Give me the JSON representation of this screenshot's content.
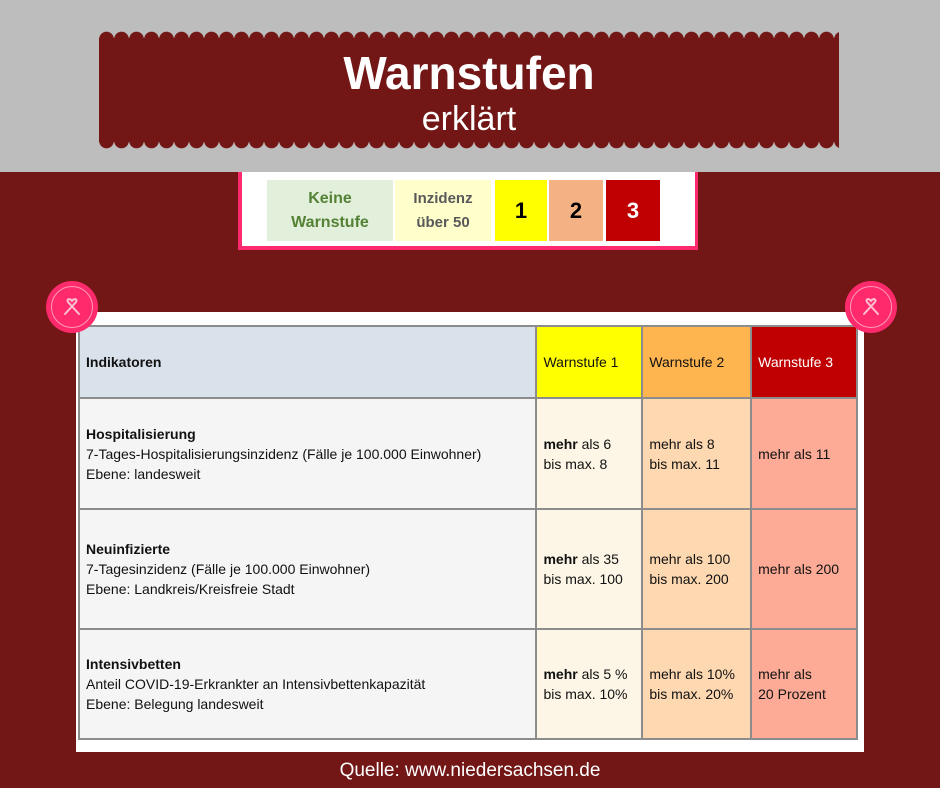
{
  "header": {
    "title": "Warnstufen",
    "subtitle": "erklärt"
  },
  "legend": [
    {
      "label1": "Keine",
      "label2": "Warnstufe",
      "bg": "#e2efda",
      "color": "#548235"
    },
    {
      "label1": "Inzidenz",
      "label2": "über 50",
      "bg": "#ffffcc",
      "color": "#595959"
    },
    {
      "label1": "1",
      "bg": "#ffff00",
      "color": "#000000"
    },
    {
      "label1": "2",
      "bg": "#f4b183",
      "color": "#000000"
    },
    {
      "label1": "3",
      "bg": "#c00000",
      "color": "#ffffff"
    }
  ],
  "table": {
    "headers": [
      "Indikatoren",
      "Warnstufe 1",
      "Warnstufe 2",
      "Warnstufe 3"
    ],
    "header_colors": [
      "#d9e1ea",
      "#ffff00",
      "#ffb54f",
      "#c00000"
    ],
    "rows": [
      {
        "name": "Hospitalisierung",
        "desc": "7-Tages-Hospitalisierungsinzidenz (Fälle je 100.000 Einwohner)",
        "level": "Ebene: landesweit",
        "w1_bold": "mehr",
        "w1_rest": " als 6",
        "w1_line2": "bis max. 8",
        "w2": "mehr als 8",
        "w2_line2": "bis max. 11",
        "w3": "mehr als 11",
        "w3_line2": ""
      },
      {
        "name": "Neuinfizierte",
        "desc": "7-Tagesinzidenz (Fälle je 100.000 Einwohner)",
        "level": "Ebene: Landkreis/Kreisfreie Stadt",
        "w1_bold": "mehr",
        "w1_rest": " als 35",
        "w1_line2": "bis max. 100",
        "w2": "mehr als 100",
        "w2_line2": "bis max. 200",
        "w3": "mehr als 200",
        "w3_line2": ""
      },
      {
        "name": "Intensivbetten",
        "desc": "Anteil COVID-19-Erkrankter an Intensivbettenkapazität",
        "level": "Ebene: Belegung landesweit",
        "w1_bold": "mehr",
        "w1_rest": " als 5 %",
        "w1_line2": "bis max. 10%",
        "w2": "mehr als 10%",
        "w2_line2": "bis max. 20%",
        "w3": "mehr als",
        "w3_line2": "20 Prozent"
      }
    ]
  },
  "footer": {
    "source": "Quelle: www.niedersachsen.de"
  }
}
